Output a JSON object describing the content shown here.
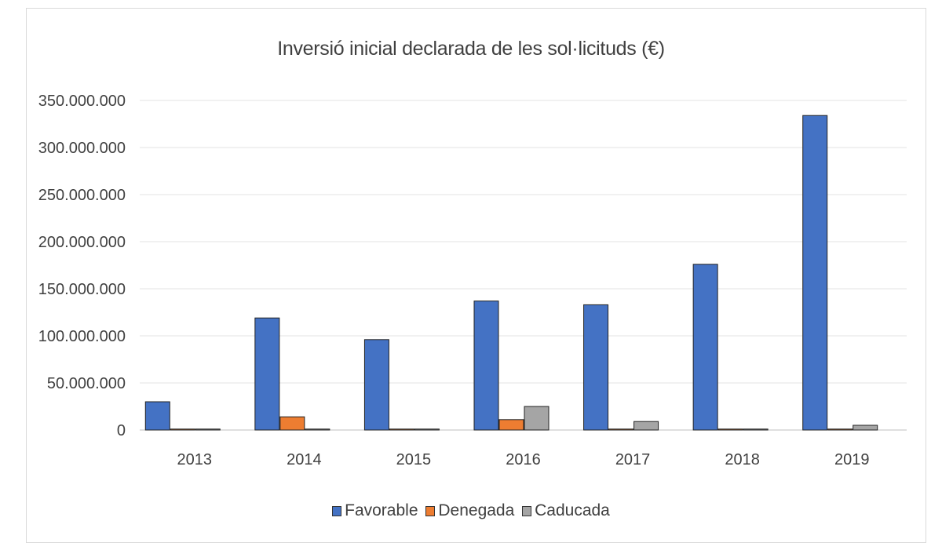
{
  "chart_data": {
    "type": "bar",
    "title": "Inversió inicial declarada de les sol·licituds (€)",
    "xlabel": "",
    "ylabel": "",
    "categories": [
      "2013",
      "2014",
      "2015",
      "2016",
      "2017",
      "2018",
      "2019"
    ],
    "series": [
      {
        "name": "Favorable",
        "color": "#4472c4",
        "values": [
          30000000,
          119000000,
          96000000,
          137000000,
          133000000,
          176000000,
          334000000
        ]
      },
      {
        "name": "Denegada",
        "color": "#ed7d31",
        "values": [
          1000000,
          14000000,
          1000000,
          11000000,
          1000000,
          1000000,
          1000000
        ]
      },
      {
        "name": "Caducada",
        "color": "#a5a5a5",
        "values": [
          1000000,
          1000000,
          1000000,
          25000000,
          9000000,
          1000000,
          5000000
        ]
      }
    ],
    "ylim": [
      0,
      350000000
    ],
    "yticks": [
      0,
      50000000,
      100000000,
      150000000,
      200000000,
      250000000,
      300000000,
      350000000
    ],
    "ytick_labels": [
      "0",
      "50.000.000",
      "100.000.000",
      "150.000.000",
      "200.000.000",
      "250.000.000",
      "300.000.000",
      "350.000.000"
    ],
    "grid": true,
    "legend": "bottom-center"
  }
}
